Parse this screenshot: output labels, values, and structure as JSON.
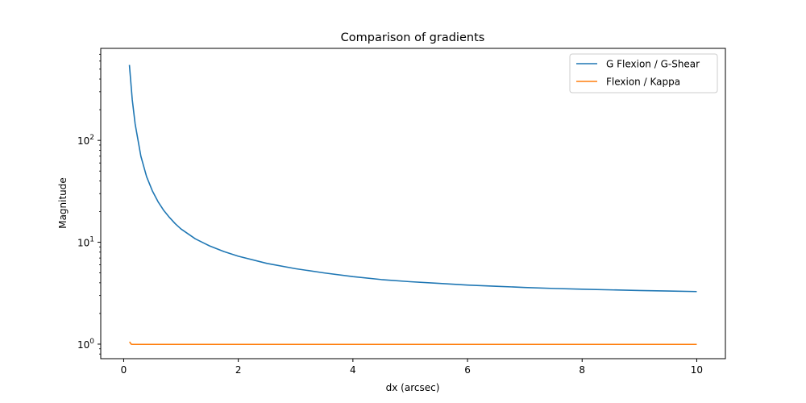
{
  "chart_data": {
    "type": "line",
    "title": "Comparison of gradients",
    "xlabel": "dx (arcsec)",
    "ylabel": "Magnitude",
    "xlim": [
      -0.4,
      10.5
    ],
    "ylim": [
      0.72,
      800
    ],
    "yscale": "log",
    "grid": false,
    "legend_position": "top-right",
    "x_ticks": [
      {
        "value": 0,
        "label": "0"
      },
      {
        "value": 2,
        "label": "2"
      },
      {
        "value": 4,
        "label": "4"
      },
      {
        "value": 6,
        "label": "6"
      },
      {
        "value": 8,
        "label": "8"
      },
      {
        "value": 10,
        "label": "10"
      }
    ],
    "y_ticks": [
      {
        "value": 1,
        "base": "10",
        "exp": "0"
      },
      {
        "value": 10,
        "base": "10",
        "exp": "1"
      },
      {
        "value": 100,
        "base": "10",
        "exp": "2"
      }
    ],
    "series": [
      {
        "name": "G Flexion / G-Shear",
        "color": "#1f77b4",
        "x": [
          0.1,
          0.15,
          0.2,
          0.3,
          0.4,
          0.5,
          0.6,
          0.7,
          0.8,
          0.9,
          1.0,
          1.25,
          1.5,
          1.75,
          2.0,
          2.5,
          3.0,
          3.5,
          4.0,
          4.5,
          5.0,
          5.5,
          6.0,
          6.5,
          7.0,
          7.5,
          8.0,
          8.5,
          9.0,
          9.5,
          10.0
        ],
        "y": [
          550,
          250,
          145,
          70,
          44,
          32,
          25,
          20.5,
          17.5,
          15.2,
          13.5,
          10.8,
          9.2,
          8.1,
          7.3,
          6.2,
          5.5,
          5.0,
          4.6,
          4.3,
          4.1,
          3.95,
          3.8,
          3.7,
          3.6,
          3.52,
          3.46,
          3.41,
          3.36,
          3.32,
          3.28
        ]
      },
      {
        "name": "Flexion / Kappa",
        "color": "#ff7f0e",
        "x": [
          0.1,
          0.11,
          0.13,
          0.15,
          0.2,
          0.5,
          1.0,
          2.0,
          4.0,
          6.0,
          8.0,
          10.0
        ],
        "y": [
          1.05,
          1.04,
          1.0,
          0.995,
          0.995,
          0.995,
          0.995,
          0.995,
          0.995,
          0.995,
          0.995,
          0.995
        ]
      }
    ]
  }
}
